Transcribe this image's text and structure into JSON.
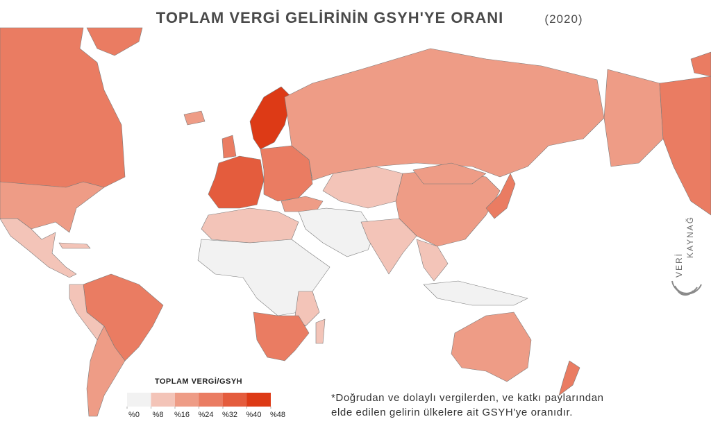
{
  "header": {
    "title": "TOPLAM VERGİ GELİRİNİN GSYH'YE ORANI",
    "year": "(2020)"
  },
  "legend": {
    "title": "TOPLAM VERGİ/GSYH",
    "range": [
      0,
      48
    ],
    "ticks": [
      {
        "value": 0,
        "label": "%0"
      },
      {
        "value": 8,
        "label": "%8"
      },
      {
        "value": 16,
        "label": "%16"
      },
      {
        "value": 24,
        "label": "%24"
      },
      {
        "value": 32,
        "label": "%32"
      },
      {
        "value": 40,
        "label": "%40"
      },
      {
        "value": 48,
        "label": "%48"
      }
    ],
    "colors": [
      "#f2f2f2",
      "#f3c4b8",
      "#ee9c86",
      "#ea7c62",
      "#e45c3d",
      "#dd3a16"
    ]
  },
  "footnote": [
    "*Doğrudan ve dolaylı vergilerden, ve katkı paylarından",
    "elde edilen gelirin ülkelere ait GSYH'ye oranıdır."
  ],
  "watermark": {
    "line1": "VERİ",
    "line2": "KAYNAĞ"
  }
}
